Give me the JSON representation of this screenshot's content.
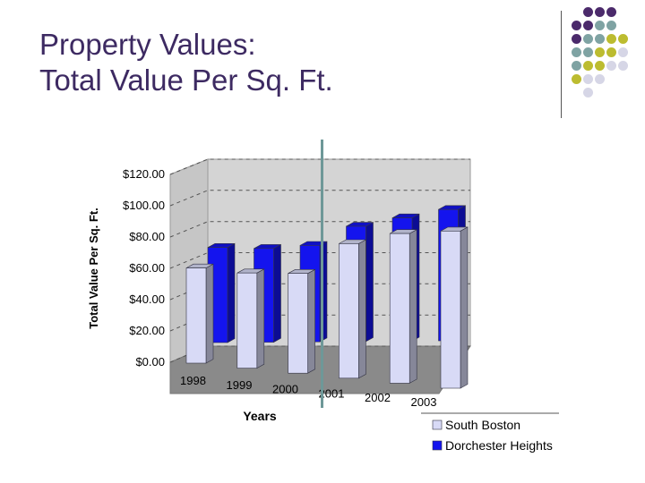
{
  "slide": {
    "title_line1": "Property Values:",
    "title_line2": "Total Value Per Sq. Ft."
  },
  "decoration": {
    "dot_colors": [
      "#4b2a6b",
      "#7fa3a3",
      "#bcbc30",
      "#d6d6e6"
    ],
    "accent_color": "#4b2a6b"
  },
  "chart_data": {
    "type": "bar",
    "title": "",
    "xlabel": "Years",
    "ylabel": "Total Value Per Sq. Ft.",
    "categories": [
      "1998",
      "1999",
      "2000",
      "2001",
      "2002",
      "2003"
    ],
    "ylim": [
      0,
      120
    ],
    "y_ticks": [
      "$0.00",
      "$20.00",
      "$40.00",
      "$60.00",
      "$80.00",
      "$100.00",
      "$120.00"
    ],
    "grid": true,
    "legend_position": "bottom-right",
    "series": [
      {
        "name": "South Boston",
        "color": "#d8daf6",
        "values": [
          63,
          63,
          66,
          89,
          99,
          104
        ]
      },
      {
        "name": "Dorchester Heights",
        "color": "#1414ee",
        "values": [
          71,
          70,
          72,
          86,
          92,
          98
        ]
      }
    ]
  }
}
